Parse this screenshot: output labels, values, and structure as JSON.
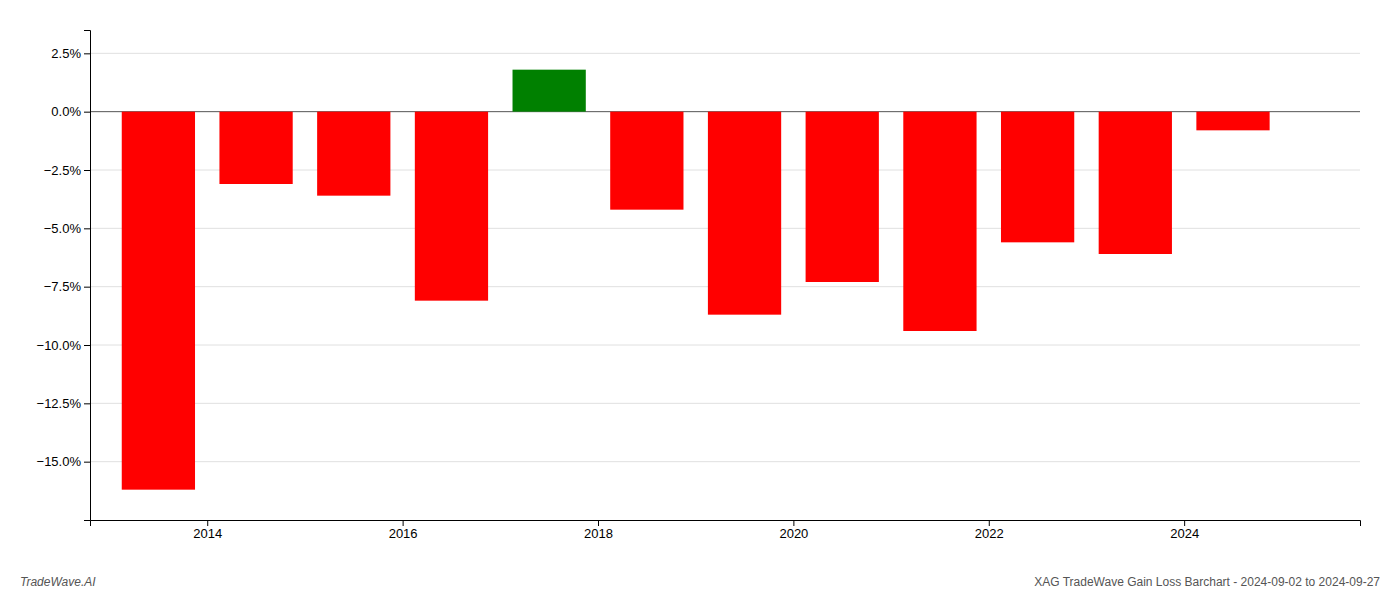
{
  "chart_data": {
    "type": "bar",
    "x": [
      2013.5,
      2014.5,
      2015.5,
      2016.5,
      2017.5,
      2018.5,
      2019.5,
      2020.5,
      2021.5,
      2022.5,
      2023.5,
      2024.5
    ],
    "values": [
      -16.2,
      -3.1,
      -3.6,
      -8.1,
      1.8,
      -4.2,
      -8.7,
      -7.3,
      -9.4,
      -5.6,
      -6.1,
      -0.8
    ],
    "colors": [
      "#ff0000",
      "#ff0000",
      "#ff0000",
      "#ff0000",
      "#008000",
      "#ff0000",
      "#ff0000",
      "#ff0000",
      "#ff0000",
      "#ff0000",
      "#ff0000",
      "#ff0000"
    ],
    "xlim": [
      2012.8,
      2025.8
    ],
    "xticks": [
      2014,
      2016,
      2018,
      2020,
      2022,
      2024
    ],
    "ylim": [
      -17.5,
      3.5
    ],
    "yticks": [
      {
        "value": -15.0,
        "label": "−15.0%"
      },
      {
        "value": -12.5,
        "label": "−12.5%"
      },
      {
        "value": -10.0,
        "label": "−10.0%"
      },
      {
        "value": -7.5,
        "label": "−7.5%"
      },
      {
        "value": -5.0,
        "label": "−5.0%"
      },
      {
        "value": -2.5,
        "label": "−2.5%"
      },
      {
        "value": 0.0,
        "label": "0.0%"
      },
      {
        "value": 2.5,
        "label": "2.5%"
      }
    ],
    "grid": true,
    "annotations": [
      "TradeWave.AI",
      "XAG TradeWave Gain Loss Barchart - 2024-09-02 to 2024-09-27"
    ]
  }
}
